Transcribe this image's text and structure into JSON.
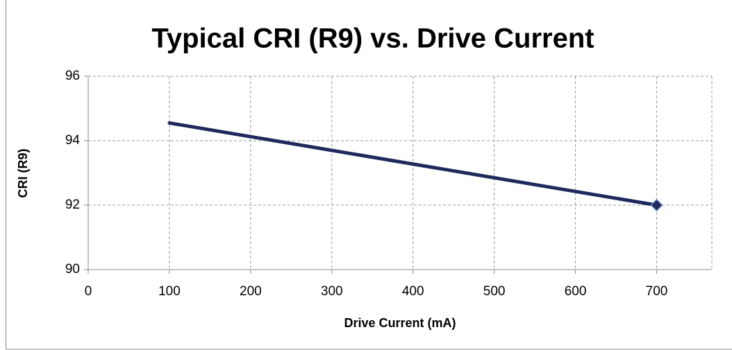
{
  "chart_data": {
    "type": "line",
    "title": "Typical CRI (R9) vs. Drive Current",
    "xlabel": "Drive Current (mA)",
    "ylabel": "CRI (R9)",
    "x": [
      100,
      700
    ],
    "series": [
      {
        "name": "CRI (R9)",
        "color": "#1f2a5c",
        "values": [
          94.55,
          92
        ]
      }
    ],
    "xlim": [
      0,
      768
    ],
    "xticks": [
      0,
      100,
      200,
      300,
      400,
      500,
      600,
      700
    ],
    "ylim": [
      90,
      96
    ],
    "yticks": [
      90,
      92,
      94,
      96
    ],
    "grid": true
  }
}
